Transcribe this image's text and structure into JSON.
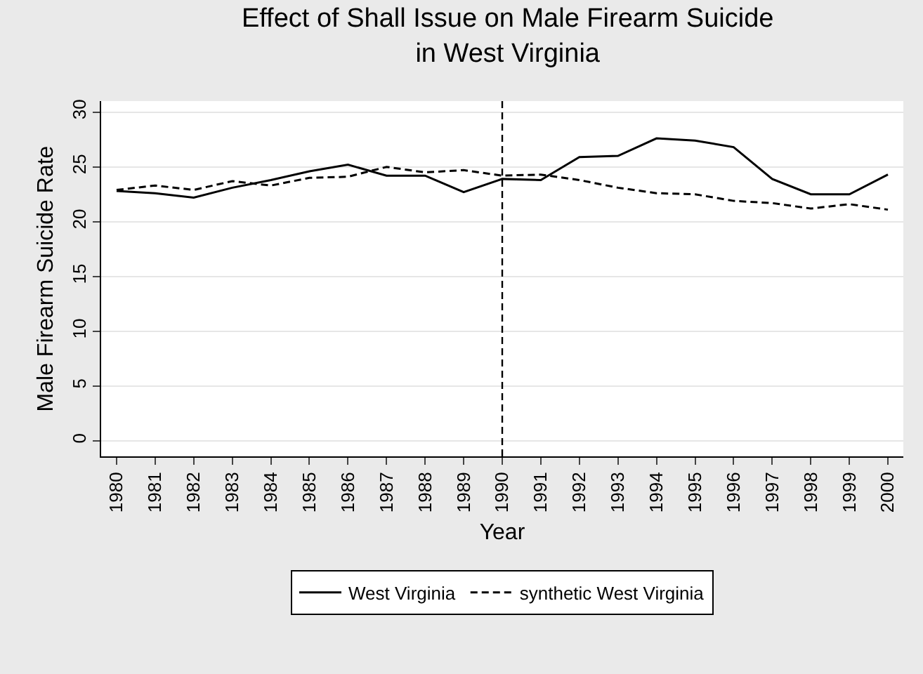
{
  "chart_data": {
    "type": "line",
    "title": "Effect of Shall Issue on Male Firearm Suicide\nin West Virginia",
    "xlabel": "Year",
    "ylabel": "Male Firearm Suicide Rate",
    "x": [
      1980,
      1981,
      1982,
      1983,
      1984,
      1985,
      1986,
      1987,
      1988,
      1989,
      1990,
      1991,
      1992,
      1993,
      1994,
      1995,
      1996,
      1997,
      1998,
      1999,
      2000
    ],
    "series": [
      {
        "name": "West Virginia",
        "color": "#000000",
        "line_style": "solid",
        "values": [
          22.8,
          22.6,
          22.2,
          23.1,
          23.8,
          24.6,
          25.2,
          24.2,
          24.2,
          22.7,
          23.9,
          23.8,
          25.9,
          26.0,
          27.6,
          27.4,
          26.8,
          23.9,
          22.5,
          22.5,
          24.3
        ]
      },
      {
        "name": "synthetic West Virginia",
        "color": "#000000",
        "line_style": "dashed",
        "values": [
          22.9,
          23.3,
          22.9,
          23.7,
          23.3,
          24.0,
          24.1,
          25.0,
          24.5,
          24.7,
          24.2,
          24.3,
          23.8,
          23.1,
          22.6,
          22.5,
          21.9,
          21.7,
          21.2,
          21.6,
          21.1
        ]
      }
    ],
    "xlim": [
      1979.6,
      2000.4
    ],
    "xticks": [
      1980,
      1981,
      1982,
      1983,
      1984,
      1985,
      1986,
      1987,
      1988,
      1989,
      1990,
      1991,
      1992,
      1993,
      1994,
      1995,
      1996,
      1997,
      1998,
      1999,
      2000
    ],
    "ylim": [
      -1.4,
      31
    ],
    "yticks": [
      0,
      5,
      10,
      15,
      20,
      25,
      30
    ],
    "grid": "y",
    "legend": "bottom",
    "ref_lines": [
      {
        "axis": "x",
        "value": 1990,
        "color": "#000000",
        "line_style": "dashed"
      }
    ]
  }
}
